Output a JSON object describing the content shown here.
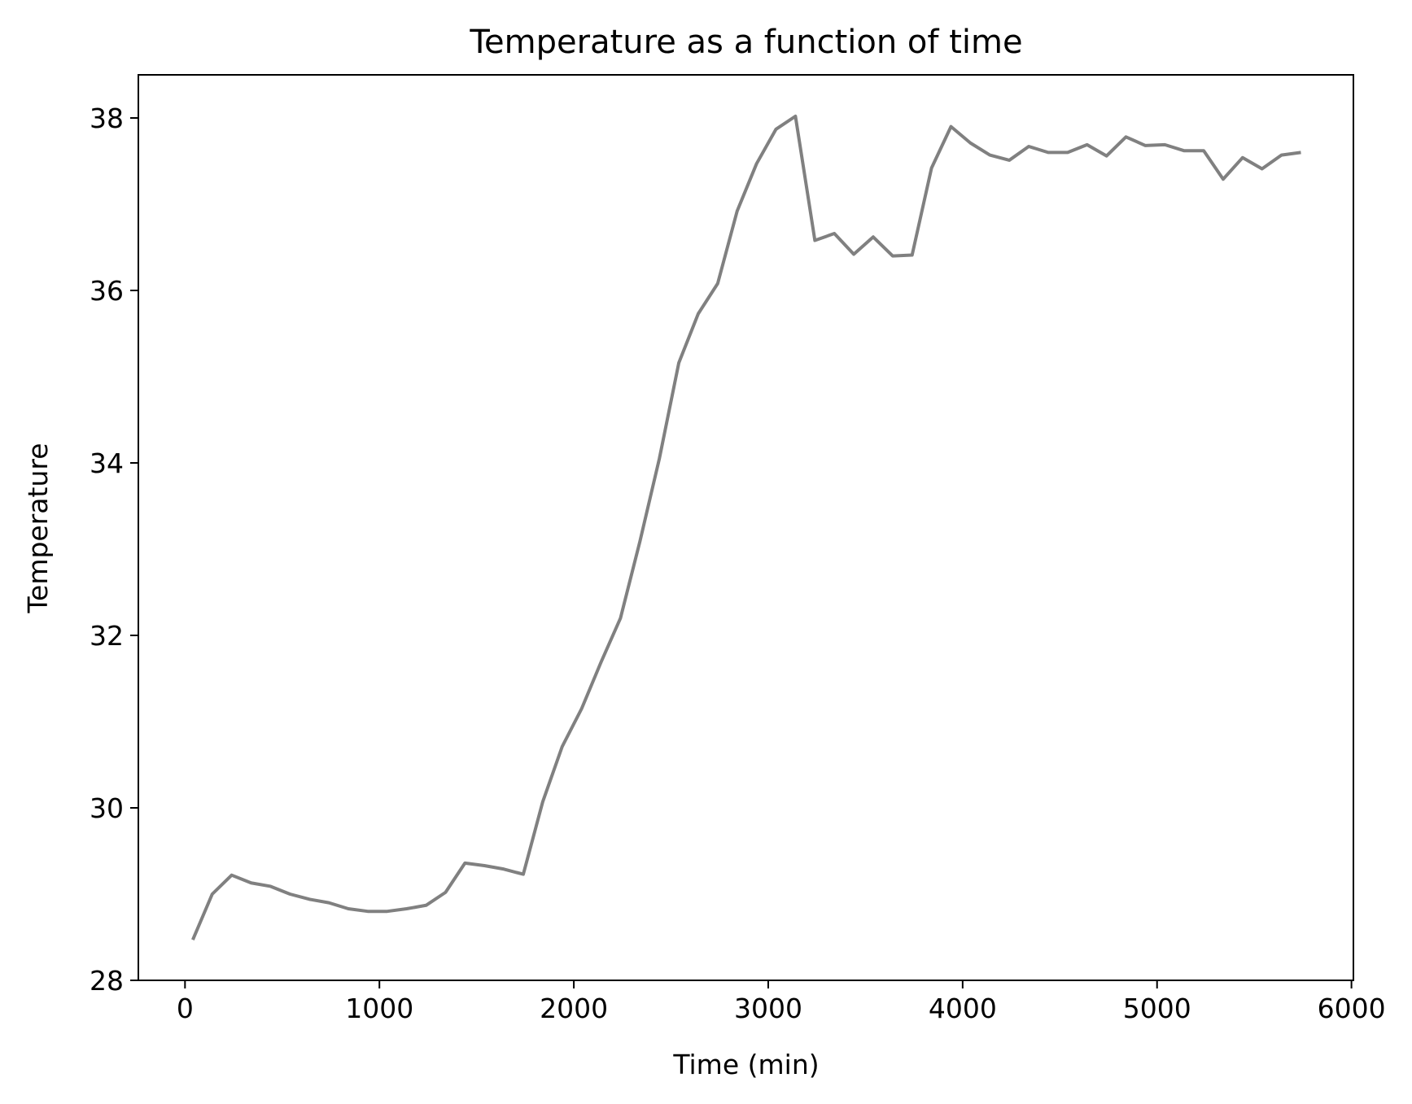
{
  "chart_data": {
    "type": "line",
    "title": "Temperature as a function of time",
    "xlabel": "Time (min)",
    "ylabel": "Temperature",
    "xlim": [
      -240,
      6010
    ],
    "ylim": [
      28,
      38.5
    ],
    "xticks": [
      0,
      1000,
      2000,
      3000,
      4000,
      5000,
      6000
    ],
    "xtick_labels": [
      "0",
      "1000",
      "2000",
      "3000",
      "4000",
      "5000",
      "6000"
    ],
    "yticks": [
      28,
      30,
      32,
      34,
      36,
      38
    ],
    "ytick_labels": [
      "28",
      "30",
      "32",
      "34",
      "36",
      "38"
    ],
    "grid": false,
    "line_color": "#808080",
    "series": [
      {
        "x": [
          40,
          140,
          240,
          340,
          440,
          540,
          640,
          740,
          840,
          940,
          1040,
          1140,
          1240,
          1340,
          1440,
          1540,
          1640,
          1740,
          1840,
          1940,
          2040,
          2140,
          2240,
          2340,
          2440,
          2540,
          2640,
          2740,
          2840,
          2940,
          3040,
          3140,
          3240,
          3340,
          3440,
          3540,
          3640,
          3740,
          3840,
          3940,
          4040,
          4140,
          4240,
          4340,
          4440,
          4540,
          4640,
          4740,
          4840,
          4940,
          5040,
          5140,
          5240,
          5340,
          5440,
          5540,
          5640,
          5740
        ],
        "y": [
          28.47,
          29.0,
          29.22,
          29.13,
          29.09,
          29.0,
          28.94,
          28.9,
          28.83,
          28.8,
          28.8,
          28.83,
          28.87,
          29.02,
          29.36,
          29.33,
          29.29,
          29.23,
          30.07,
          30.71,
          31.15,
          31.69,
          32.2,
          33.09,
          34.05,
          35.16,
          35.73,
          36.08,
          36.92,
          37.47,
          37.87,
          38.02,
          36.58,
          36.66,
          36.42,
          36.62,
          36.4,
          36.41,
          37.42,
          37.9,
          37.71,
          37.57,
          37.51,
          37.67,
          37.6,
          37.6,
          37.69,
          37.56,
          37.78,
          37.68,
          37.69,
          37.62,
          37.62,
          37.29,
          37.54,
          37.41,
          37.57,
          37.6
        ]
      }
    ]
  }
}
